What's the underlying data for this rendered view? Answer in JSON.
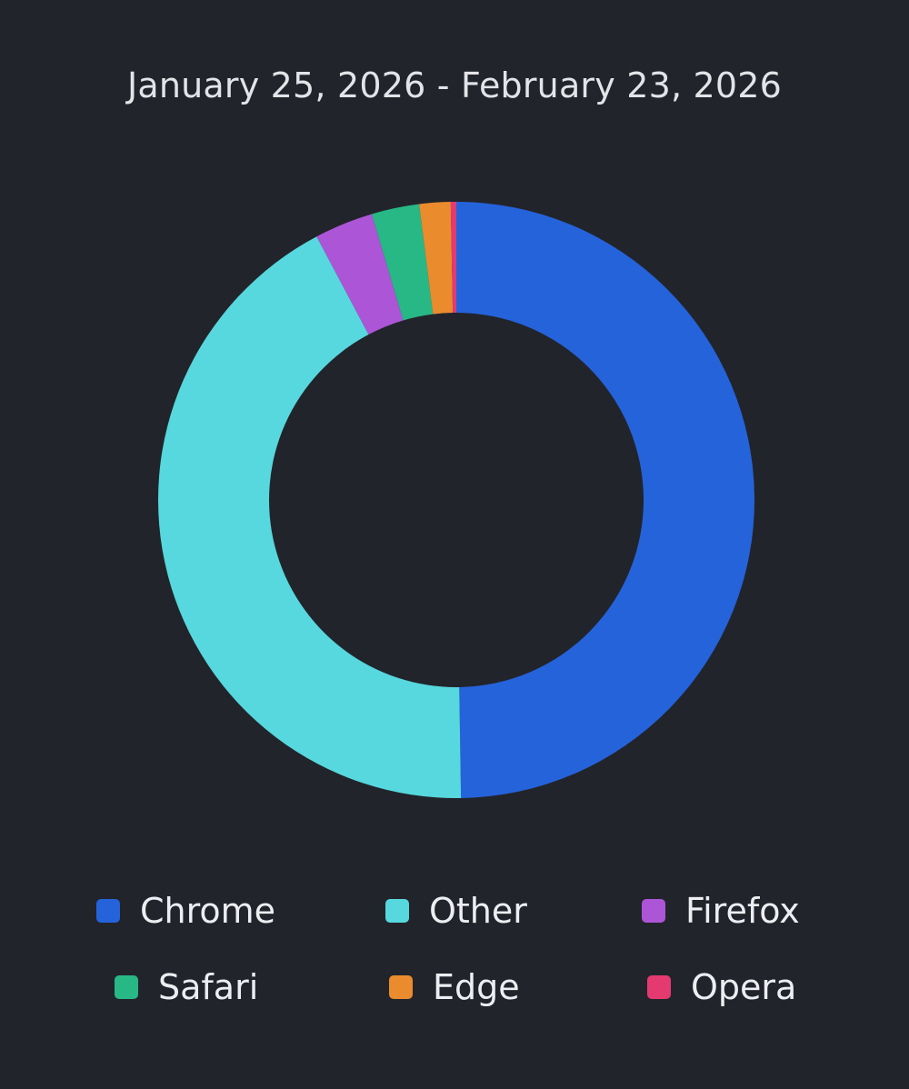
{
  "header": {
    "date_range": "January 25, 2026 - February 23, 2026"
  },
  "chart_data": {
    "type": "pie",
    "variant": "donut",
    "start_angle_deg": 90,
    "direction": "clockwise",
    "categories": [
      "Chrome",
      "Other",
      "Firefox",
      "Safari",
      "Edge",
      "Opera"
    ],
    "values": [
      50.0,
      42.7,
      3.2,
      2.6,
      1.7,
      0.3
    ],
    "colors": [
      "#2563db",
      "#56d8de",
      "#ad55d7",
      "#27b886",
      "#ea8b2e",
      "#e43a70"
    ],
    "legend_position": "bottom"
  },
  "legend": {
    "items": [
      {
        "label": "Chrome",
        "color": "#2563db"
      },
      {
        "label": "Other",
        "color": "#56d8de"
      },
      {
        "label": "Firefox",
        "color": "#ad55d7"
      },
      {
        "label": "Safari",
        "color": "#27b886"
      },
      {
        "label": "Edge",
        "color": "#ea8b2e"
      },
      {
        "label": "Opera",
        "color": "#e43a70"
      }
    ]
  }
}
